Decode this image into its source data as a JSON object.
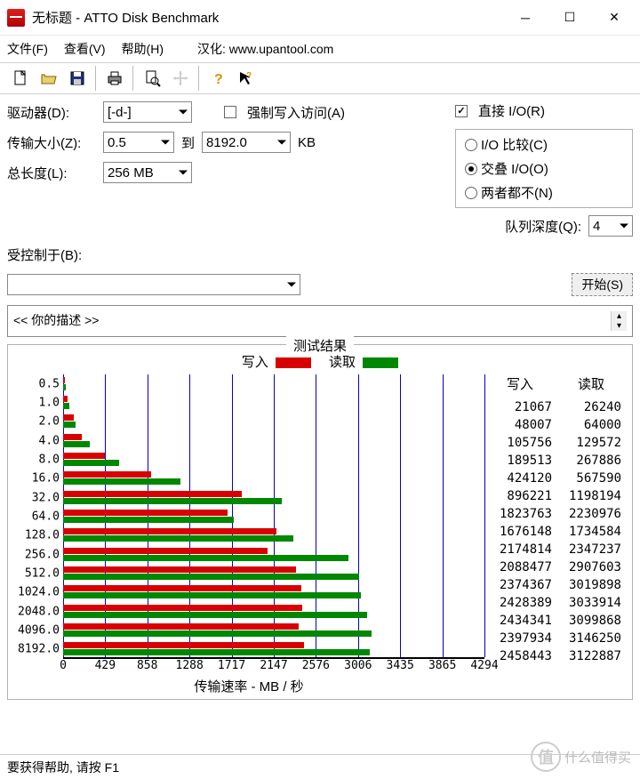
{
  "window": {
    "title": "无标题 - ATTO Disk Benchmark"
  },
  "menu": {
    "file": "文件(F)",
    "view": "查看(V)",
    "help": "帮助(H)",
    "translation": "汉化: www.upantool.com"
  },
  "controls": {
    "drive_label": "驱动器(D):",
    "drive_value": "[-d-]",
    "force_write": "强制写入访问(A)",
    "direct_io": "直接 I/O(R)",
    "transfer_label": "传输大小(Z):",
    "transfer_from": "0.5",
    "to_label": "到",
    "transfer_to": "8192.0",
    "kb": "KB",
    "io_compare": "I/O 比较(C)",
    "overlapped": "交叠 I/O(O)",
    "neither": "两者都不(N)",
    "length_label": "总长度(L):",
    "length_value": "256 MB",
    "queue_label": "队列深度(Q):",
    "queue_value": "4",
    "controlled_label": "受控制于(B):",
    "start_btn": "开始(S)",
    "description": "<<  你的描述  >>"
  },
  "results": {
    "title": "测试结果",
    "write_label": "写入",
    "read_label": "读取",
    "write_color": "#d80000",
    "read_color": "#008800",
    "grid_color": "#0000cc",
    "x_title": "传输速率 - MB / 秒",
    "x_max": 4294,
    "x_ticks": [
      0,
      429,
      858,
      1288,
      1717,
      2147,
      2576,
      3006,
      3435,
      3865,
      4294
    ],
    "rows": [
      {
        "size": "0.5",
        "write": 21067,
        "read": 26240,
        "wmb": 21,
        "rmb": 26
      },
      {
        "size": "1.0",
        "write": 48007,
        "read": 64000,
        "wmb": 48,
        "rmb": 64
      },
      {
        "size": "2.0",
        "write": 105756,
        "read": 129572,
        "wmb": 106,
        "rmb": 130
      },
      {
        "size": "4.0",
        "write": 189513,
        "read": 267886,
        "wmb": 190,
        "rmb": 268
      },
      {
        "size": "8.0",
        "write": 424120,
        "read": 567590,
        "wmb": 424,
        "rmb": 568
      },
      {
        "size": "16.0",
        "write": 896221,
        "read": 1198194,
        "wmb": 896,
        "rmb": 1198
      },
      {
        "size": "32.0",
        "write": 1823763,
        "read": 2230976,
        "wmb": 1824,
        "rmb": 2231
      },
      {
        "size": "64.0",
        "write": 1676148,
        "read": 1734584,
        "wmb": 1676,
        "rmb": 1735
      },
      {
        "size": "128.0",
        "write": 2174814,
        "read": 2347237,
        "wmb": 2175,
        "rmb": 2347
      },
      {
        "size": "256.0",
        "write": 2088477,
        "read": 2907603,
        "wmb": 2088,
        "rmb": 2908
      },
      {
        "size": "512.0",
        "write": 2374367,
        "read": 3019898,
        "wmb": 2374,
        "rmb": 3020
      },
      {
        "size": "1024.0",
        "write": 2428389,
        "read": 3033914,
        "wmb": 2428,
        "rmb": 3034
      },
      {
        "size": "2048.0",
        "write": 2434341,
        "read": 3099868,
        "wmb": 2434,
        "rmb": 3100
      },
      {
        "size": "4096.0",
        "write": 2397934,
        "read": 3146250,
        "wmb": 2398,
        "rmb": 3146
      },
      {
        "size": "8192.0",
        "write": 2458443,
        "read": 3122887,
        "wmb": 2458,
        "rmb": 3123
      }
    ]
  },
  "status": "要获得帮助, 请按 F1",
  "watermark": "什么值得买"
}
